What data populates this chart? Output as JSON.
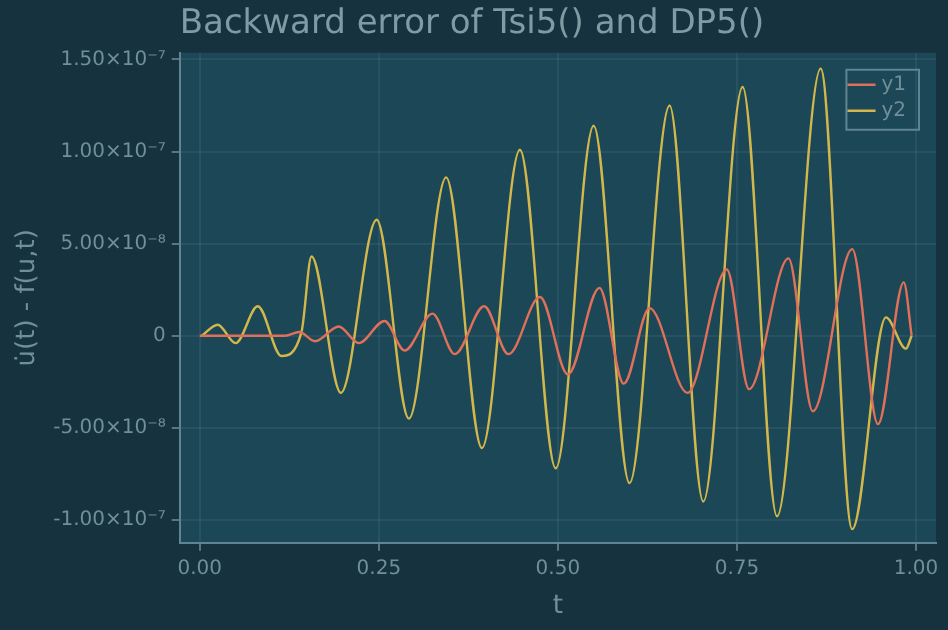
{
  "chart_data": {
    "type": "line",
    "title": "Backward error of Tsi5() and DP5()",
    "xlabel": "t",
    "ylabel": "u̇(t) - f(u,t)",
    "xlim": [
      -0.028,
      1.028
    ],
    "ylim": [
      -1.124e-07,
      1.536e-07
    ],
    "xticks": [
      {
        "value": 0,
        "label": "0.00"
      },
      {
        "value": 0.25,
        "label": "0.25"
      },
      {
        "value": 0.5,
        "label": "0.50"
      },
      {
        "value": 0.75,
        "label": "0.75"
      },
      {
        "value": 1,
        "label": "1.00"
      }
    ],
    "yticks": [
      {
        "value": -1e-07,
        "label": "-1.00×10⁻⁷"
      },
      {
        "value": -5e-08,
        "label": "-5.00×10⁻⁸"
      },
      {
        "value": 0,
        "label": "0"
      },
      {
        "value": 5e-08,
        "label": "5.00×10⁻⁸"
      },
      {
        "value": 1e-07,
        "label": "1.00×10⁻⁷"
      },
      {
        "value": 1.5e-07,
        "label": "1.50×10⁻⁷"
      }
    ],
    "grid": true,
    "legend": "top right",
    "marker": "none",
    "line_style": "solid",
    "series": [
      {
        "name": "y1",
        "color": "#e0705a",
        "x": [
          0,
          0.119,
          0.139,
          0.161,
          0.194,
          0.222,
          0.258,
          0.286,
          0.325,
          0.356,
          0.397,
          0.431,
          0.475,
          0.514,
          0.558,
          0.592,
          0.628,
          0.681,
          0.736,
          0.767,
          0.822,
          0.856,
          0.911,
          0.947,
          0.983,
          0.994
        ],
        "values": [
          0,
          0,
          2e-09,
          -3e-09,
          5e-09,
          -4e-09,
          8e-09,
          -8e-09,
          1.2e-08,
          -1e-08,
          1.6e-08,
          -1e-08,
          2.1e-08,
          -2.1e-08,
          2.6e-08,
          -2.6e-08,
          1.5e-08,
          -3.1e-08,
          3.6e-08,
          -2.9e-08,
          4.2e-08,
          -4.1e-08,
          4.7e-08,
          -4.8e-08,
          2.9e-08,
          0
        ]
      },
      {
        "name": "y2",
        "color": "#d2b84c",
        "x": [
          0.003,
          0.025,
          0.05,
          0.081,
          0.114,
          0.142,
          0.156,
          0.197,
          0.247,
          0.292,
          0.344,
          0.394,
          0.447,
          0.497,
          0.55,
          0.6,
          0.656,
          0.703,
          0.758,
          0.806,
          0.867,
          0.911,
          0.958,
          0.986,
          0.994
        ],
        "values": [
          0,
          6e-09,
          -4e-09,
          1.6e-08,
          -1.1e-08,
          2e-09,
          4.3e-08,
          -3.1e-08,
          6.3e-08,
          -4.5e-08,
          8.6e-08,
          -6.1e-08,
          1.01e-07,
          -7.2e-08,
          1.14e-07,
          -8e-08,
          1.25e-07,
          -9e-08,
          1.35e-07,
          -9.8e-08,
          1.45e-07,
          -1.05e-07,
          1e-08,
          -7e-09,
          0
        ]
      }
    ]
  }
}
